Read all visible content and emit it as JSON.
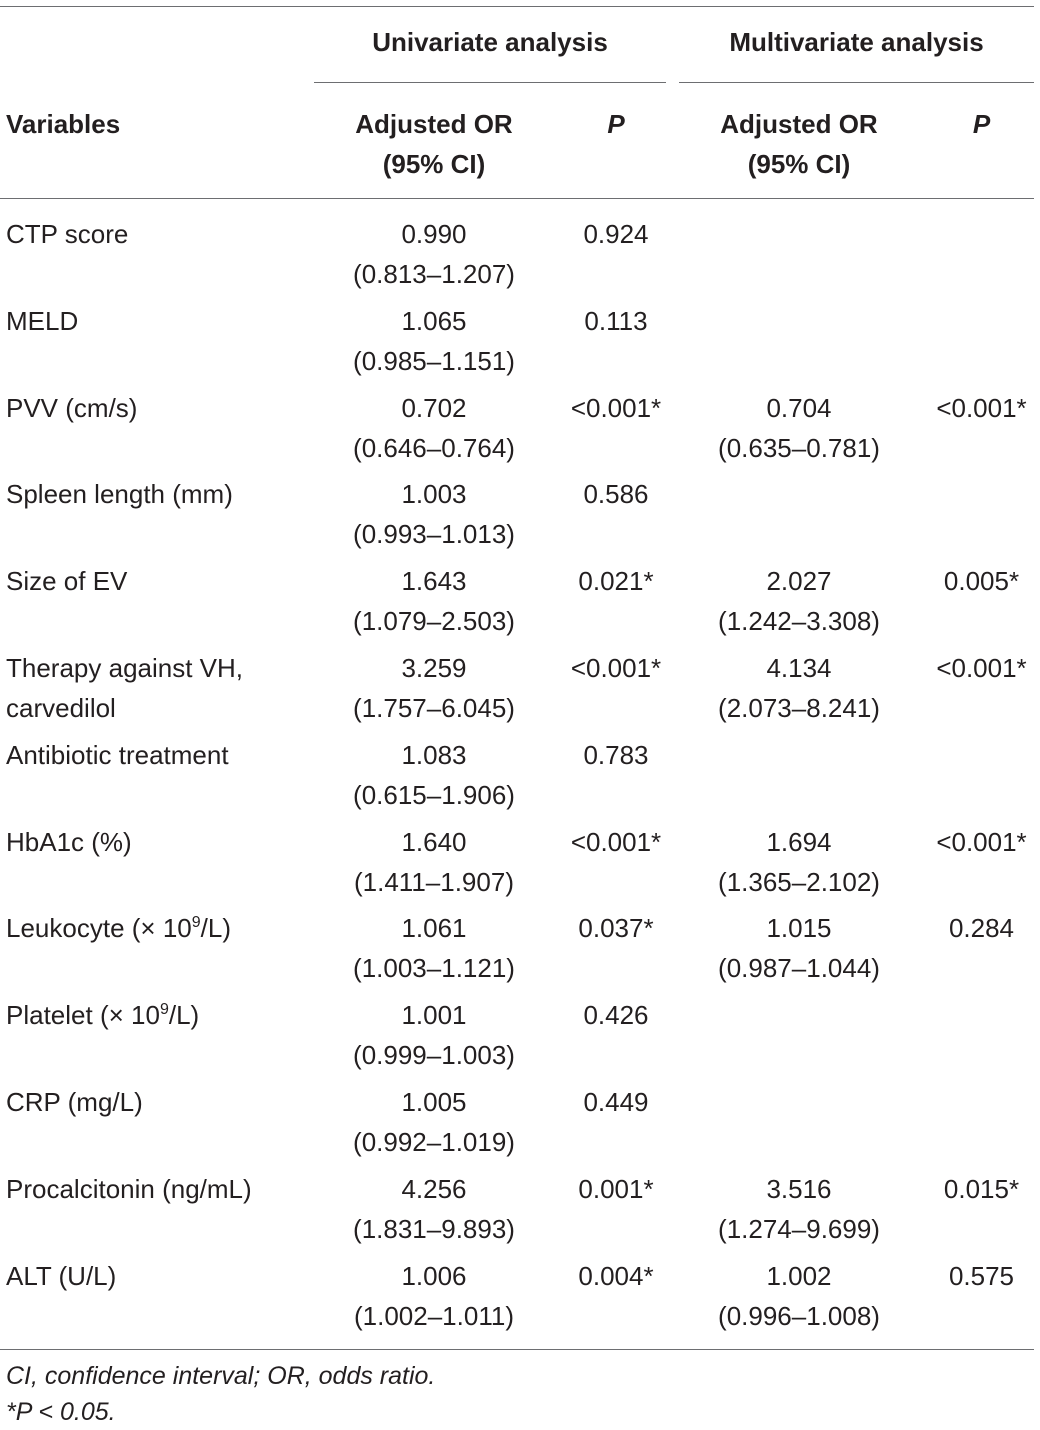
{
  "header": {
    "group_univariate": "Univariate analysis",
    "group_multivariate": "Multivariate analysis",
    "col_variables": "Variables",
    "col_or_line1": "Adjusted OR",
    "col_or_line2": "(95% CI)",
    "col_p": "P"
  },
  "rows": [
    {
      "var": "CTP score",
      "var2": "",
      "u_or": "0.990",
      "u_ci": "(0.813–1.207)",
      "u_p": "0.924",
      "m_or": "",
      "m_ci": "",
      "m_p": ""
    },
    {
      "var": "MELD",
      "var2": "",
      "u_or": "1.065",
      "u_ci": "(0.985–1.151)",
      "u_p": "0.113",
      "m_or": "",
      "m_ci": "",
      "m_p": ""
    },
    {
      "var": "PVV (cm/s)",
      "var2": "",
      "u_or": "0.702",
      "u_ci": "(0.646–0.764)",
      "u_p": "<0.001*",
      "m_or": "0.704",
      "m_ci": "(0.635–0.781)",
      "m_p": "<0.001*"
    },
    {
      "var": "Spleen length (mm)",
      "var2": "",
      "u_or": "1.003",
      "u_ci": "(0.993–1.013)",
      "u_p": "0.586",
      "m_or": "",
      "m_ci": "",
      "m_p": ""
    },
    {
      "var": "Size of EV",
      "var2": "",
      "u_or": "1.643",
      "u_ci": "(1.079–2.503)",
      "u_p": "0.021*",
      "m_or": "2.027",
      "m_ci": "(1.242–3.308)",
      "m_p": "0.005*"
    },
    {
      "var": "Therapy against VH,",
      "var2": "carvedilol",
      "u_or": "3.259",
      "u_ci": "(1.757–6.045)",
      "u_p": "<0.001*",
      "m_or": "4.134",
      "m_ci": "(2.073–8.241)",
      "m_p": "<0.001*"
    },
    {
      "var": "Antibiotic treatment",
      "var2": "",
      "u_or": "1.083",
      "u_ci": "(0.615–1.906)",
      "u_p": "0.783",
      "m_or": "",
      "m_ci": "",
      "m_p": ""
    },
    {
      "var": "HbA1c (%)",
      "var2": "",
      "u_or": "1.640",
      "u_ci": "(1.411–1.907)",
      "u_p": "<0.001*",
      "m_or": "1.694",
      "m_ci": "(1.365–2.102)",
      "m_p": "<0.001*"
    },
    {
      "var": "Leukocyte (× 10",
      "var_sup": "9",
      "var_tail": "/L)",
      "var2": "",
      "u_or": "1.061",
      "u_ci": "(1.003–1.121)",
      "u_p": "0.037*",
      "m_or": "1.015",
      "m_ci": "(0.987–1.044)",
      "m_p": "0.284"
    },
    {
      "var": "Platelet (× 10",
      "var_sup": "9",
      "var_tail": "/L)",
      "var2": "",
      "u_or": "1.001",
      "u_ci": "(0.999–1.003)",
      "u_p": "0.426",
      "m_or": "",
      "m_ci": "",
      "m_p": ""
    },
    {
      "var": "CRP (mg/L)",
      "var2": "",
      "u_or": "1.005",
      "u_ci": "(0.992–1.019)",
      "u_p": "0.449",
      "m_or": "",
      "m_ci": "",
      "m_p": ""
    },
    {
      "var": "Procalcitonin (ng/mL)",
      "var2": "",
      "u_or": "4.256",
      "u_ci": "(1.831–9.893)",
      "u_p": "0.001*",
      "m_or": "3.516",
      "m_ci": "(1.274–9.699)",
      "m_p": "0.015*"
    },
    {
      "var": "ALT (U/L)",
      "var2": "",
      "u_or": "1.006",
      "u_ci": "(1.002–1.011)",
      "u_p": "0.004*",
      "m_or": "1.002",
      "m_ci": "(0.996–1.008)",
      "m_p": "0.575"
    }
  ],
  "footnotes": {
    "line1": "CI, confidence interval; OR, odds ratio.",
    "line2": "*P < 0.05."
  }
}
